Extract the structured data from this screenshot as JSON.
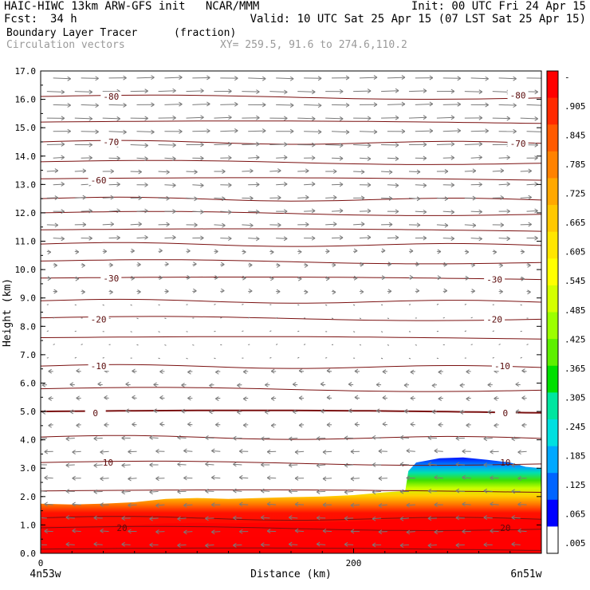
{
  "header": {
    "line1_left": "HAIC-HIWC 13km ARW-GFS init   NCAR/MMM",
    "line1_right": "Init: 00 UTC Fri 24 Apr 15",
    "fcst_label": "Fcst:",
    "fcst_value": "34 h",
    "valid": "Valid: 10 UTC Sat 25 Apr 15 (07 LST Sat 25 Apr 15)",
    "field_name": "Boundary Layer Tracer",
    "field_units": "(fraction)",
    "vectors_label": "Circulation vectors",
    "xy_label": "XY= 259.5, 91.6 to 274.6,110.2"
  },
  "chart_data": {
    "type": "heatmap",
    "title": "Boundary Layer Tracer",
    "units": "fraction",
    "xlabel": "Distance (km)",
    "ylabel": "Height (km)",
    "xlim": [
      0,
      320
    ],
    "ylim": [
      0,
      17
    ],
    "x_ticks": [
      0,
      200
    ],
    "x_tick_labels": [
      "0",
      "200"
    ],
    "x_end_labels": {
      "left": "4n53w",
      "right": "6n51w"
    },
    "y_ticks": [
      0,
      1,
      2,
      3,
      4,
      5,
      6,
      7,
      8,
      9,
      10,
      11,
      12,
      13,
      14,
      15,
      16,
      17
    ],
    "y_tick_labels": [
      "0.0",
      "1.0",
      "2.0",
      "3.0",
      "4.0",
      "5.0",
      "6.0",
      "7.0",
      "8.0",
      "9.0",
      "10.0",
      "11.0",
      "12.0",
      "13.0",
      "14.0",
      "15.0",
      "16.0",
      "17.0"
    ],
    "colorbar_labels": [
      "-",
      ".905",
      ".845",
      ".785",
      ".725",
      ".665",
      ".605",
      ".545",
      ".485",
      ".425",
      ".365",
      ".305",
      ".245",
      ".185",
      ".125",
      ".065",
      ".005"
    ],
    "colorbar_colors": [
      "#ff0000",
      "#ff2a00",
      "#ff5a00",
      "#ff8200",
      "#ffa800",
      "#ffc800",
      "#ffe600",
      "#ffff00",
      "#d4ff00",
      "#9cff00",
      "#5ef000",
      "#00e000",
      "#00e6a0",
      "#00e0e0",
      "#00a8ff",
      "#0064ff",
      "#0000ff",
      "#ffffff"
    ],
    "tracer_boundary": [
      {
        "x": 0,
        "z": 1.75
      },
      {
        "x": 20,
        "z": 1.72
      },
      {
        "x": 40,
        "z": 1.75
      },
      {
        "x": 60,
        "z": 1.8
      },
      {
        "x": 80,
        "z": 1.92
      },
      {
        "x": 100,
        "z": 1.95
      },
      {
        "x": 120,
        "z": 1.92
      },
      {
        "x": 140,
        "z": 1.95
      },
      {
        "x": 160,
        "z": 1.98
      },
      {
        "x": 180,
        "z": 2.0
      },
      {
        "x": 200,
        "z": 2.05
      },
      {
        "x": 220,
        "z": 2.15
      },
      {
        "x": 233,
        "z": 2.2
      },
      {
        "x": 235,
        "z": 2.9
      },
      {
        "x": 240,
        "z": 3.2
      },
      {
        "x": 255,
        "z": 3.35
      },
      {
        "x": 270,
        "z": 3.38
      },
      {
        "x": 285,
        "z": 3.3
      },
      {
        "x": 300,
        "z": 3.2
      },
      {
        "x": 310,
        "z": 3.05
      },
      {
        "x": 320,
        "z": 3.0
      }
    ],
    "contour_labels": [
      {
        "label": "-80",
        "x": 45,
        "z": 16.1
      },
      {
        "label": "-80",
        "x": 305,
        "z": 16.15
      },
      {
        "label": "-70",
        "x": 45,
        "z": 14.5
      },
      {
        "label": "-70",
        "x": 305,
        "z": 14.45
      },
      {
        "label": "-60",
        "x": 37,
        "z": 13.15
      },
      {
        "label": "-30",
        "x": 45,
        "z": 9.7
      },
      {
        "label": "-30",
        "x": 290,
        "z": 9.65
      },
      {
        "label": "-20",
        "x": 37,
        "z": 8.25
      },
      {
        "label": "-20",
        "x": 290,
        "z": 8.25
      },
      {
        "label": "-10",
        "x": 37,
        "z": 6.6
      },
      {
        "label": "-10",
        "x": 295,
        "z": 6.6
      },
      {
        "label": "0",
        "x": 35,
        "z": 4.95
      },
      {
        "label": "0",
        "x": 297,
        "z": 4.95
      },
      {
        "label": "10",
        "x": 43,
        "z": 3.2
      },
      {
        "label": "10",
        "x": 297,
        "z": 3.2
      },
      {
        "label": "20",
        "x": 52,
        "z": 0.9
      },
      {
        "label": "20",
        "x": 297,
        "z": 0.9
      }
    ],
    "contour_levels_km": [
      0.15,
      0.9,
      1.25,
      2.2,
      3.2,
      4.1,
      5.0,
      5.8,
      6.6,
      7.6,
      8.3,
      8.9,
      9.7,
      10.3,
      10.9,
      11.4,
      12.0,
      12.5,
      13.2,
      13.8,
      14.5,
      15.2,
      16.1
    ],
    "legend_placement": "right"
  }
}
